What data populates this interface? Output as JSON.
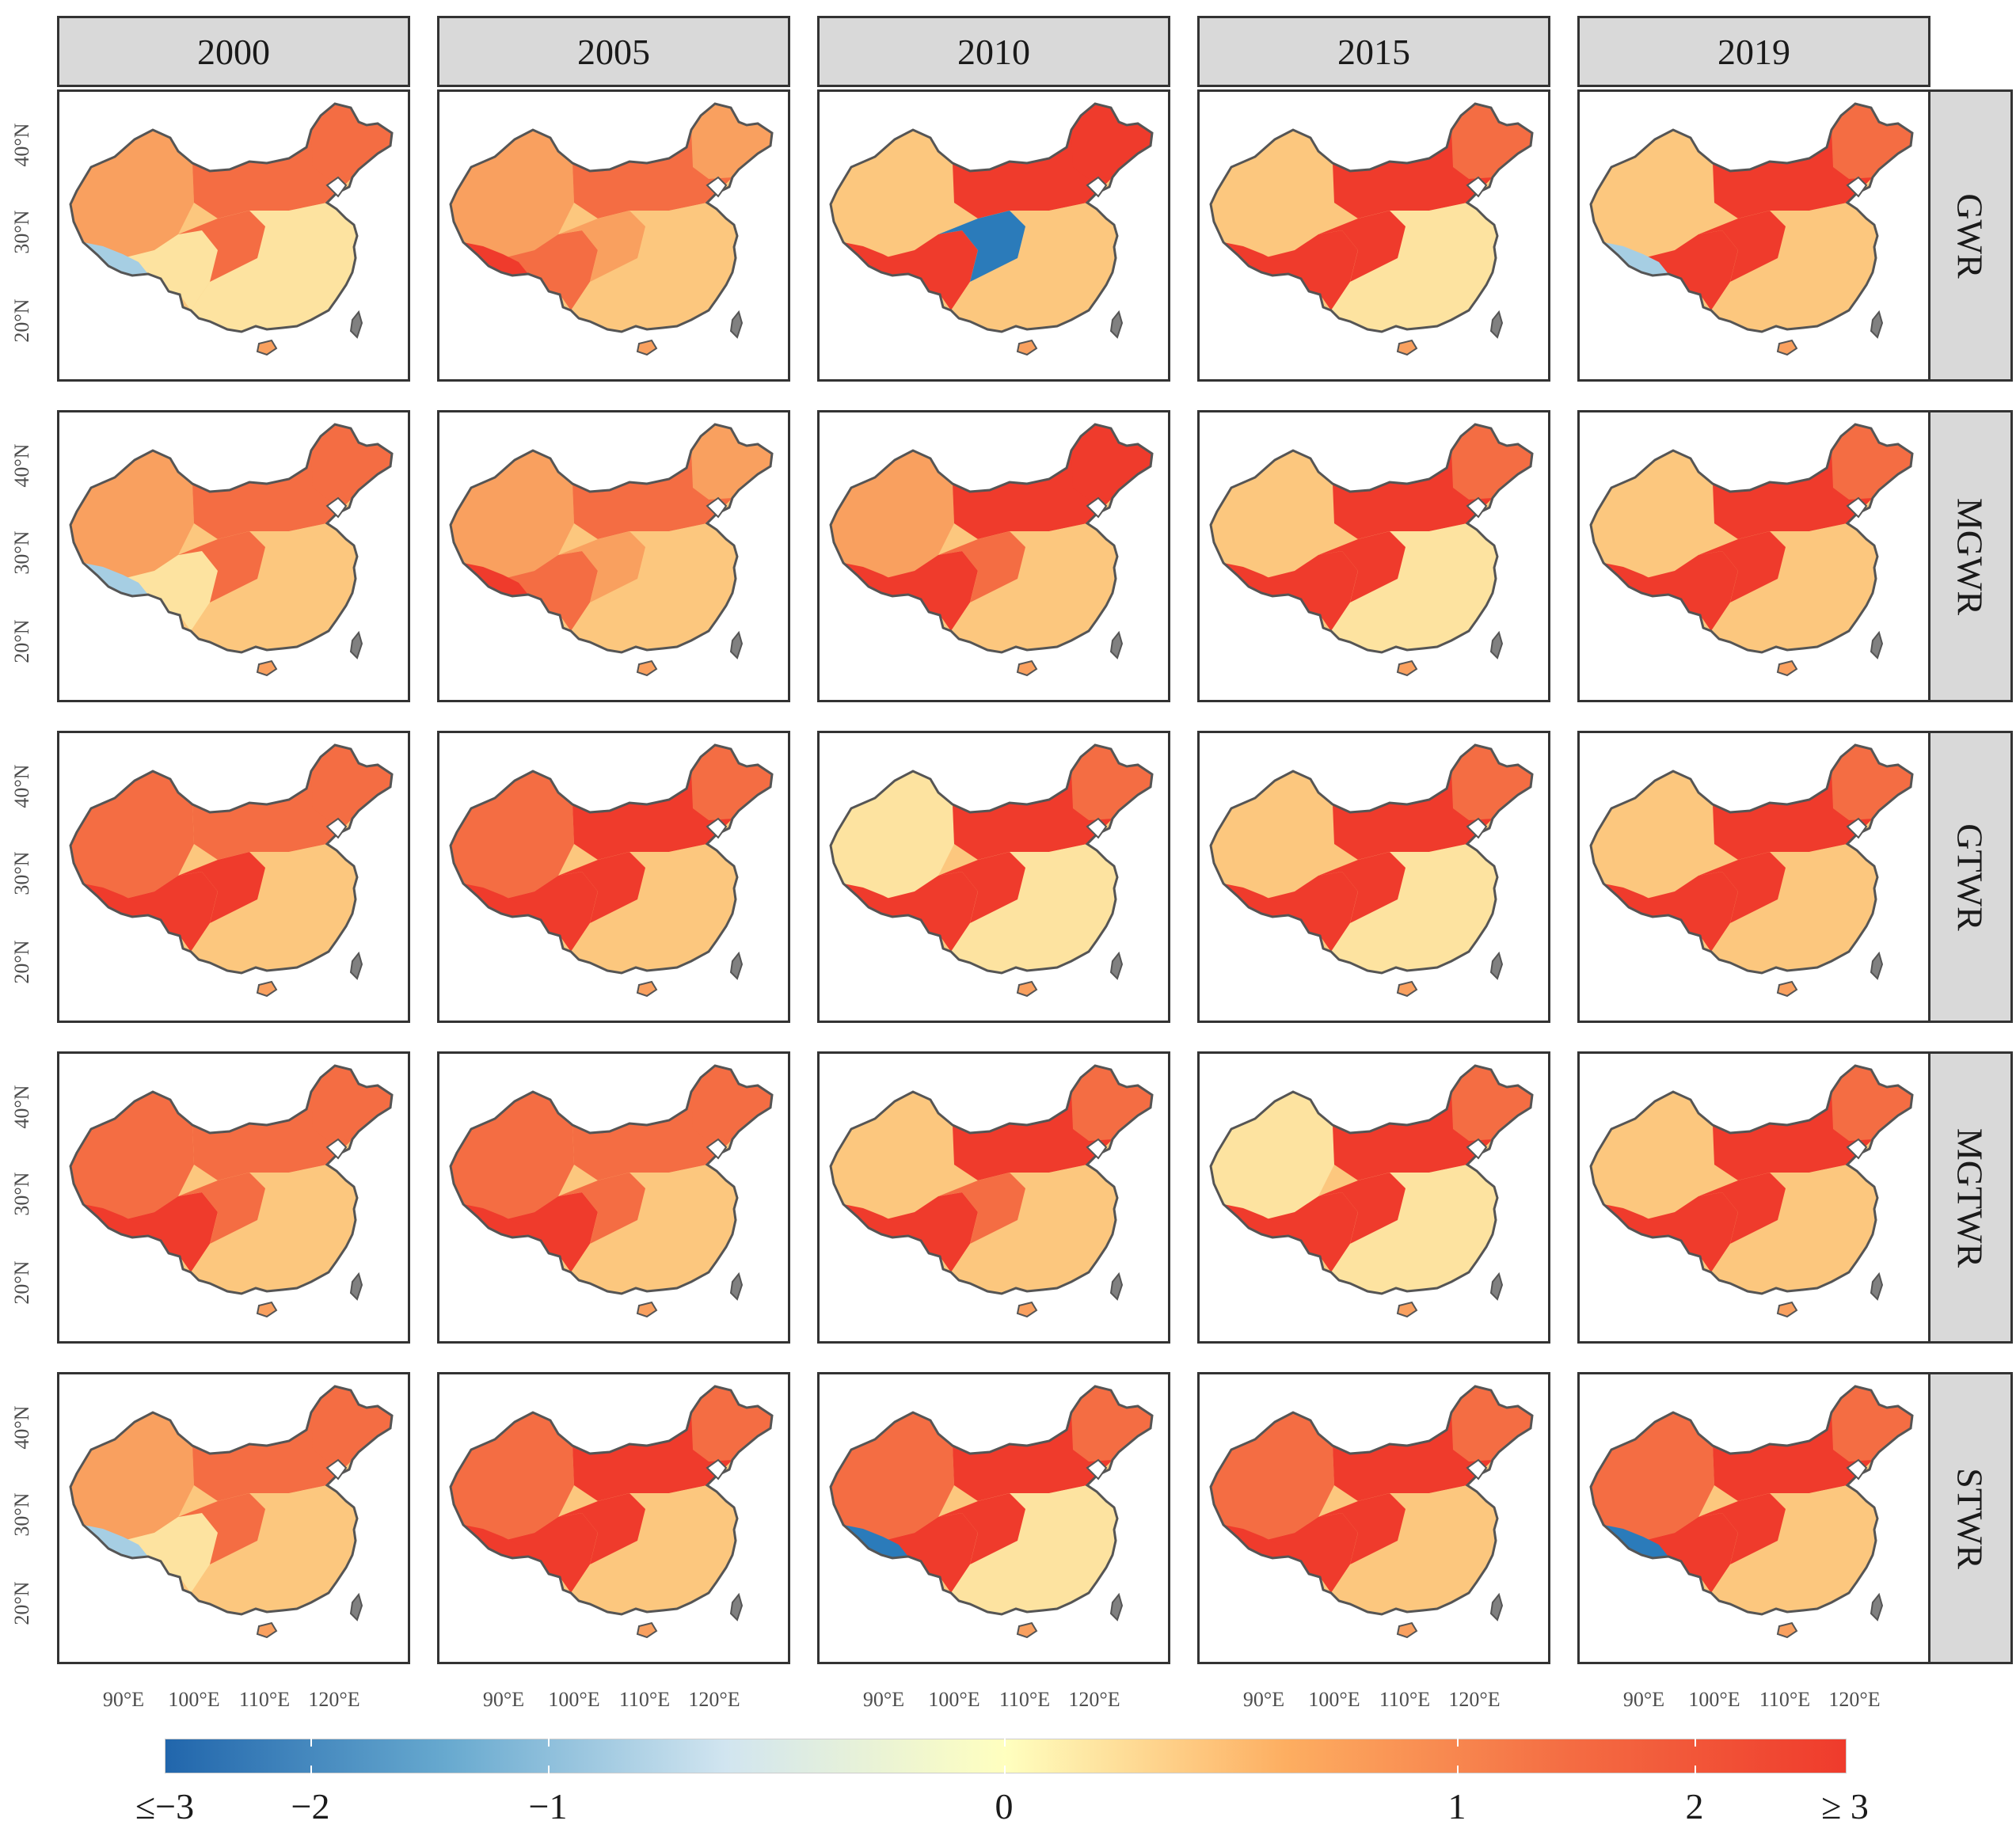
{
  "columns": [
    "2000",
    "2005",
    "2010",
    "2015",
    "2019"
  ],
  "rows": [
    "GWR",
    "MGWR",
    "GTWR",
    "MGTWR",
    "STWR"
  ],
  "lat_labels": [
    "40°N",
    "30°N",
    "20°N"
  ],
  "lon_labels": [
    "90°E",
    "100°E",
    "110°E",
    "120°E"
  ],
  "legend": {
    "labels": [
      "≤−3",
      "−2",
      "−1",
      "0",
      "1",
      "2",
      "≥ 3"
    ],
    "colors": [
      "#2166ac",
      "#67a9cf",
      "#d1e5f0",
      "#ffffbf",
      "#fdae61",
      "#f46d43",
      "#ef3b2c"
    ]
  },
  "colors": {
    "strip_bg": "#d9d9d9",
    "frame": "#333333",
    "map_outline": "#555555",
    "taiwan_fill": "#808080",
    "pale": "#fde3a0",
    "light": "#fcc77e",
    "mid": "#f9a05f",
    "high": "#f46d43",
    "max": "#ef3b2c",
    "neg_light": "#a6cee3",
    "neg_dark": "#2b7bba"
  }
}
